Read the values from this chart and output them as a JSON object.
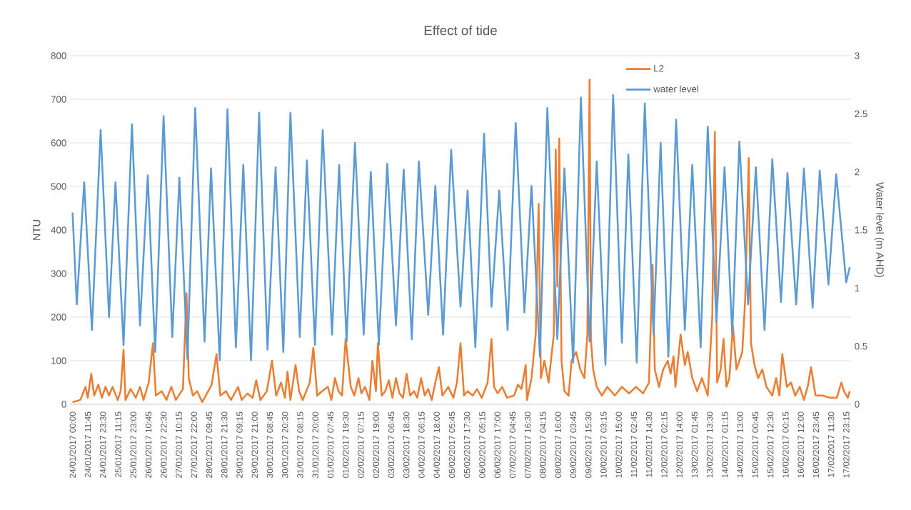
{
  "chart_data": {
    "type": "line",
    "title": "Effect of tide",
    "ylabel": "NTU",
    "y2label": "Water level (m AHD)",
    "xlim": [
      "2017-01-23T22:00",
      "2017-02-18T03:00"
    ],
    "xticks": [
      {
        "value": "2017-01-24T00:00",
        "label": "24/01/2017 00:00"
      },
      {
        "value": "2017-01-24T11:45",
        "label": "24/01/2017 11:45"
      },
      {
        "value": "2017-01-24T23:30",
        "label": "24/01/2017 23:30"
      },
      {
        "value": "2017-01-25T11:15",
        "label": "25/01/2017 11:15"
      },
      {
        "value": "2017-01-25T23:00",
        "label": "25/01/2017 23:00"
      },
      {
        "value": "2017-01-26T10:45",
        "label": "26/01/2017 10:45"
      },
      {
        "value": "2017-01-26T22:30",
        "label": "26/01/2017 22:30"
      },
      {
        "value": "2017-01-27T10:15",
        "label": "27/01/2017 10:15"
      },
      {
        "value": "2017-01-27T22:00",
        "label": "27/01/2017 22:00"
      },
      {
        "value": "2017-01-28T09:45",
        "label": "28/01/2017 09:45"
      },
      {
        "value": "2017-01-28T21:30",
        "label": "28/01/2017 21:30"
      },
      {
        "value": "2017-01-29T09:15",
        "label": "29/01/2017 09:15"
      },
      {
        "value": "2017-01-29T21:00",
        "label": "29/01/2017 21:00"
      },
      {
        "value": "2017-01-30T08:45",
        "label": "30/01/2017 08:45"
      },
      {
        "value": "2017-01-30T20:30",
        "label": "30/01/2017 20:30"
      },
      {
        "value": "2017-01-31T08:15",
        "label": "31/01/2017 08:15"
      },
      {
        "value": "2017-01-31T20:00",
        "label": "31/01/2017 20:00"
      },
      {
        "value": "2017-02-01T07:45",
        "label": "01/02/2017 07:45"
      },
      {
        "value": "2017-02-01T19:30",
        "label": "01/02/2017 19:30"
      },
      {
        "value": "2017-02-02T07:15",
        "label": "02/02/2017 07:15"
      },
      {
        "value": "2017-02-02T19:00",
        "label": "02/02/2017 19:00"
      },
      {
        "value": "2017-02-03T06:45",
        "label": "03/02/2017 06:45"
      },
      {
        "value": "2017-02-03T18:30",
        "label": "03/02/2017 18:30"
      },
      {
        "value": "2017-02-04T06:15",
        "label": "04/02/2017 06:15"
      },
      {
        "value": "2017-02-04T18:00",
        "label": "04/02/2017 18:00"
      },
      {
        "value": "2017-02-05T05:45",
        "label": "05/02/2017 05:45"
      },
      {
        "value": "2017-02-05T17:30",
        "label": "05/02/2017 17:30"
      },
      {
        "value": "2017-02-06T05:15",
        "label": "06/02/2017 05:15"
      },
      {
        "value": "2017-02-06T17:00",
        "label": "06/02/2017 17:00"
      },
      {
        "value": "2017-02-07T04:45",
        "label": "07/02/2017 04:45"
      },
      {
        "value": "2017-02-07T16:30",
        "label": "07/02/2017 16:30"
      },
      {
        "value": "2017-02-08T04:15",
        "label": "08/02/2017 04:15"
      },
      {
        "value": "2017-02-08T16:00",
        "label": "08/02/2017 16:00"
      },
      {
        "value": "2017-02-09T03:45",
        "label": "09/02/2017 03:45"
      },
      {
        "value": "2017-02-09T15:30",
        "label": "09/02/2017 15:30"
      },
      {
        "value": "2017-02-10T03:15",
        "label": "10/02/2017 03:15"
      },
      {
        "value": "2017-02-10T15:00",
        "label": "10/02/2017 15:00"
      },
      {
        "value": "2017-02-11T02:45",
        "label": "11/02/2017 02:45"
      },
      {
        "value": "2017-02-11T14:30",
        "label": "11/02/2017 14:30"
      },
      {
        "value": "2017-02-12T02:15",
        "label": "12/02/2017 02:15"
      },
      {
        "value": "2017-02-12T14:00",
        "label": "12/02/2017 14:00"
      },
      {
        "value": "2017-02-13T01:45",
        "label": "13/02/2017 01:45"
      },
      {
        "value": "2017-02-13T13:30",
        "label": "13/02/2017 13:30"
      },
      {
        "value": "2017-02-14T01:15",
        "label": "14/02/2017 01:15"
      },
      {
        "value": "2017-02-14T13:00",
        "label": "14/02/2017 13:00"
      },
      {
        "value": "2017-02-15T00:45",
        "label": "15/02/2017 00:45"
      },
      {
        "value": "2017-02-15T12:30",
        "label": "15/02/2017 12:30"
      },
      {
        "value": "2017-02-16T00:15",
        "label": "16/02/2017 00:15"
      },
      {
        "value": "2017-02-16T12:00",
        "label": "16/02/2017 12:00"
      },
      {
        "value": "2017-02-16T23:45",
        "label": "16/02/2017 23:45"
      },
      {
        "value": "2017-02-17T11:30",
        "label": "17/02/2017 11:30"
      },
      {
        "value": "2017-02-17T23:15",
        "label": "17/02/2017 23:15"
      }
    ],
    "ylim": [
      0,
      800
    ],
    "yticks": [
      0,
      100,
      200,
      300,
      400,
      500,
      600,
      700,
      800
    ],
    "y2lim": [
      0,
      3
    ],
    "y2ticks": [
      0,
      0.5,
      1,
      1.5,
      2,
      2.5,
      3
    ],
    "grid": "y",
    "legend": "top right",
    "series": [
      {
        "name": "L2",
        "color": "#ed7d31",
        "x": [
          "2017-01-24T00:00",
          "2017-01-24T06:00",
          "2017-01-24T10:00",
          "2017-01-24T11:45",
          "2017-01-24T14:30",
          "2017-01-24T16:45",
          "2017-01-24T20:00",
          "2017-01-24T22:45",
          "2017-01-25T01:30",
          "2017-01-25T04:15",
          "2017-01-25T07:00",
          "2017-01-25T11:00",
          "2017-01-25T13:15",
          "2017-01-25T15:30",
          "2017-01-25T17:00",
          "2017-01-25T21:00",
          "2017-01-26T01:00",
          "2017-01-26T04:15",
          "2017-01-26T07:00",
          "2017-01-26T11:00",
          "2017-01-26T14:15",
          "2017-01-26T16:30",
          "2017-01-26T21:00",
          "2017-01-27T00:45",
          "2017-01-27T04:30",
          "2017-01-27T08:00",
          "2017-01-27T13:30",
          "2017-01-27T16:15",
          "2017-01-27T18:00",
          "2017-01-27T21:15",
          "2017-01-28T00:30",
          "2017-01-28T04:30",
          "2017-01-28T11:45",
          "2017-01-28T15:30",
          "2017-01-28T18:30",
          "2017-01-28T22:45",
          "2017-01-29T02:45",
          "2017-01-29T08:15",
          "2017-01-29T11:00",
          "2017-01-29T15:30",
          "2017-01-29T19:30",
          "2017-01-29T22:15",
          "2017-01-30T01:30",
          "2017-01-30T06:30",
          "2017-01-30T10:30",
          "2017-01-30T13:45",
          "2017-01-30T17:30",
          "2017-01-30T20:30",
          "2017-01-30T22:30",
          "2017-01-31T00:45",
          "2017-01-31T04:45",
          "2017-01-31T07:30",
          "2017-01-31T10:15",
          "2017-01-31T15:45",
          "2017-01-31T18:30",
          "2017-01-31T21:30",
          "2017-02-01T01:15",
          "2017-02-01T05:45",
          "2017-02-01T08:30",
          "2017-02-01T11:15",
          "2017-02-01T14:00",
          "2017-02-01T16:45",
          "2017-02-01T19:30",
          "2017-02-01T23:30",
          "2017-02-02T02:15",
          "2017-02-02T05:30",
          "2017-02-02T07:45",
          "2017-02-02T10:30",
          "2017-02-02T14:00",
          "2017-02-02T16:15",
          "2017-02-02T19:00",
          "2017-02-02T20:30",
          "2017-02-02T23:30",
          "2017-02-03T02:15",
          "2017-02-03T05:00",
          "2017-02-03T07:45",
          "2017-02-03T10:30",
          "2017-02-03T13:15",
          "2017-02-03T16:00",
          "2017-02-03T18:45",
          "2017-02-03T21:30",
          "2017-02-04T00:30",
          "2017-02-04T03:00",
          "2017-02-04T06:00",
          "2017-02-04T08:45",
          "2017-02-04T11:30",
          "2017-02-04T14:15",
          "2017-02-04T17:00",
          "2017-02-04T19:45",
          "2017-02-04T22:30",
          "2017-02-05T03:00",
          "2017-02-05T07:00",
          "2017-02-05T09:45",
          "2017-02-05T12:30",
          "2017-02-05T15:15",
          "2017-02-05T18:00",
          "2017-02-05T22:00",
          "2017-02-06T01:15",
          "2017-02-06T05:00",
          "2017-02-06T09:30",
          "2017-02-06T12:30",
          "2017-02-06T14:30",
          "2017-02-06T17:15",
          "2017-02-06T20:45",
          "2017-02-07T00:30",
          "2017-02-07T06:00",
          "2017-02-07T09:00",
          "2017-02-07T11:45",
          "2017-02-07T15:00",
          "2017-02-07T16:00",
          "2017-02-07T19:30",
          "2017-02-07T22:45",
          "2017-02-08T01:00",
          "2017-02-08T02:45",
          "2017-02-08T05:30",
          "2017-02-08T08:45",
          "2017-02-08T12:45",
          "2017-02-08T14:15",
          "2017-02-08T15:30",
          "2017-02-08T17:00",
          "2017-02-08T18:45",
          "2017-02-08T21:00",
          "2017-02-09T00:15",
          "2017-02-09T02:30",
          "2017-02-09T06:00",
          "2017-02-09T09:15",
          "2017-02-09T12:30",
          "2017-02-09T14:45",
          "2017-02-09T16:30",
          "2017-02-09T17:30",
          "2017-02-09T19:15",
          "2017-02-09T22:00",
          "2017-02-10T02:00",
          "2017-02-10T06:15",
          "2017-02-10T12:00",
          "2017-02-10T17:30",
          "2017-02-10T23:00",
          "2017-02-11T04:30",
          "2017-02-11T10:00",
          "2017-02-11T14:30",
          "2017-02-11T17:15",
          "2017-02-11T19:00",
          "2017-02-11T22:15",
          "2017-02-12T01:30",
          "2017-02-12T05:00",
          "2017-02-12T07:15",
          "2017-02-12T09:30",
          "2017-02-12T11:00",
          "2017-02-12T15:00",
          "2017-02-12T18:15",
          "2017-02-12T20:30",
          "2017-02-13T00:00",
          "2017-02-13T03:45",
          "2017-02-13T07:30",
          "2017-02-13T12:00",
          "2017-02-13T15:30",
          "2017-02-13T17:30",
          "2017-02-13T19:15",
          "2017-02-13T22:00",
          "2017-02-14T00:15",
          "2017-02-14T02:30",
          "2017-02-14T04:45",
          "2017-02-14T07:30",
          "2017-02-14T10:15",
          "2017-02-14T14:45",
          "2017-02-14T17:00",
          "2017-02-14T19:45",
          "2017-02-14T21:30",
          "2017-02-15T00:15",
          "2017-02-15T03:00",
          "2017-02-15T06:15",
          "2017-02-15T09:30",
          "2017-02-15T14:00",
          "2017-02-15T17:00",
          "2017-02-15T19:30",
          "2017-02-15T21:45",
          "2017-02-16T01:15",
          "2017-02-16T04:30",
          "2017-02-16T07:45",
          "2017-02-16T11:15",
          "2017-02-16T14:30",
          "2017-02-16T17:45",
          "2017-02-16T20:00",
          "2017-02-16T23:30",
          "2017-02-17T05:00",
          "2017-02-17T10:30",
          "2017-02-17T16:00",
          "2017-02-17T19:30",
          "2017-02-17T21:30",
          "2017-02-18T00:30",
          "2017-02-18T02:00"
        ],
        "values": [
          5,
          10,
          40,
          15,
          70,
          20,
          45,
          15,
          40,
          20,
          40,
          10,
          30,
          125,
          10,
          35,
          15,
          40,
          10,
          50,
          140,
          20,
          30,
          10,
          40,
          10,
          35,
          255,
          60,
          20,
          30,
          5,
          45,
          115,
          20,
          30,
          10,
          40,
          10,
          25,
          15,
          55,
          10,
          30,
          100,
          20,
          50,
          15,
          75,
          10,
          90,
          30,
          10,
          50,
          130,
          20,
          30,
          40,
          10,
          60,
          30,
          20,
          150,
          40,
          20,
          60,
          25,
          40,
          10,
          100,
          30,
          140,
          20,
          30,
          55,
          15,
          60,
          25,
          15,
          70,
          20,
          30,
          15,
          60,
          20,
          35,
          10,
          50,
          85,
          20,
          40,
          15,
          50,
          140,
          20,
          30,
          20,
          35,
          15,
          50,
          150,
          40,
          25,
          40,
          15,
          20,
          45,
          35,
          90,
          10,
          60,
          160,
          460,
          60,
          100,
          50,
          160,
          585,
          270,
          610,
          100,
          30,
          20,
          100,
          120,
          80,
          60,
          160,
          745,
          150,
          80,
          40,
          20,
          40,
          20,
          40,
          25,
          40,
          25,
          50,
          320,
          80,
          40,
          80,
          100,
          70,
          110,
          40,
          160,
          90,
          120,
          60,
          30,
          60,
          20,
          200,
          625,
          50,
          80,
          150,
          40,
          60,
          180,
          80,
          120,
          240,
          565,
          140,
          90,
          60,
          80,
          40,
          20,
          60,
          20,
          115,
          40,
          50,
          20,
          40,
          10,
          45,
          85,
          20,
          20,
          15,
          15,
          50,
          30,
          15,
          30
        ]
      },
      {
        "name": "water level",
        "color": "#5b9bd5",
        "axis": "y2",
        "x": [
          "2017-01-24T00:00",
          "2017-01-24T03:15",
          "2017-01-24T09:00",
          "2017-01-24T15:00",
          "2017-01-24T21:45",
          "2017-01-25T04:15",
          "2017-01-25T09:15",
          "2017-01-25T15:30",
          "2017-01-25T22:00",
          "2017-01-26T04:15",
          "2017-01-26T10:15",
          "2017-01-26T16:00",
          "2017-01-26T22:30",
          "2017-01-27T05:15",
          "2017-01-27T10:45",
          "2017-01-27T17:00",
          "2017-01-27T23:00",
          "2017-01-28T06:15",
          "2017-01-28T11:15",
          "2017-01-28T18:00",
          "2017-01-29T00:00",
          "2017-01-29T06:30",
          "2017-01-29T12:15",
          "2017-01-29T18:15",
          "2017-01-30T00:30",
          "2017-01-30T07:00",
          "2017-01-30T13:15",
          "2017-01-30T19:15",
          "2017-01-31T00:45",
          "2017-01-31T08:00",
          "2017-01-31T13:30",
          "2017-01-31T19:45",
          "2017-02-01T01:45",
          "2017-02-01T09:00",
          "2017-02-01T14:30",
          "2017-02-01T20:15",
          "2017-02-02T02:45",
          "2017-02-02T09:30",
          "2017-02-02T15:00",
          "2017-02-02T21:15",
          "2017-02-03T03:45",
          "2017-02-03T10:30",
          "2017-02-03T16:30",
          "2017-02-03T22:45",
          "2017-02-04T04:15",
          "2017-02-04T11:30",
          "2017-02-04T17:00",
          "2017-02-04T23:00",
          "2017-02-05T05:15",
          "2017-02-05T12:30",
          "2017-02-05T18:00",
          "2017-02-06T00:00",
          "2017-02-06T06:45",
          "2017-02-06T12:30",
          "2017-02-06T18:30",
          "2017-02-07T01:00",
          "2017-02-07T07:15",
          "2017-02-07T14:00",
          "2017-02-07T19:30",
          "2017-02-08T02:00",
          "2017-02-08T07:45",
          "2017-02-08T15:30",
          "2017-02-08T21:00",
          "2017-02-09T03:45",
          "2017-02-09T09:45",
          "2017-02-09T16:30",
          "2017-02-09T22:00",
          "2017-02-10T04:45",
          "2017-02-10T10:45",
          "2017-02-10T17:30",
          "2017-02-10T22:30",
          "2017-02-11T05:00",
          "2017-02-11T11:15",
          "2017-02-11T18:00",
          "2017-02-11T23:30",
          "2017-02-12T05:30",
          "2017-02-12T11:30",
          "2017-02-12T18:15",
          "2017-02-13T00:00",
          "2017-02-13T06:30",
          "2017-02-13T12:00",
          "2017-02-13T18:45",
          "2017-02-14T01:00",
          "2017-02-14T07:00",
          "2017-02-14T12:30",
          "2017-02-14T19:15",
          "2017-02-15T01:15",
          "2017-02-15T08:00",
          "2017-02-15T14:00",
          "2017-02-15T20:45",
          "2017-02-16T01:45",
          "2017-02-16T08:30",
          "2017-02-16T14:30",
          "2017-02-16T21:15",
          "2017-02-17T02:45",
          "2017-02-17T09:30",
          "2017-02-17T15:30",
          "2017-02-17T23:15",
          "2017-02-18T02:00"
        ],
        "values": [
          1.65,
          0.86,
          1.91,
          0.64,
          2.36,
          0.75,
          1.91,
          0.51,
          2.41,
          0.68,
          1.97,
          0.45,
          2.48,
          0.58,
          1.95,
          0.39,
          2.55,
          0.54,
          2.03,
          0.38,
          2.54,
          0.49,
          2.06,
          0.38,
          2.51,
          0.47,
          2.04,
          0.45,
          2.51,
          0.58,
          2.1,
          0.51,
          2.36,
          0.6,
          2.06,
          0.54,
          2.25,
          0.6,
          2.0,
          0.51,
          2.07,
          0.68,
          2.02,
          0.56,
          2.09,
          0.77,
          1.88,
          0.6,
          2.19,
          0.84,
          1.84,
          0.49,
          2.33,
          0.84,
          1.84,
          0.64,
          2.42,
          0.79,
          1.88,
          0.41,
          2.55,
          0.56,
          2.03,
          0.36,
          2.64,
          0.54,
          2.09,
          0.34,
          2.66,
          0.53,
          2.15,
          0.36,
          2.59,
          0.6,
          2.25,
          0.41,
          2.45,
          0.64,
          2.06,
          0.49,
          2.39,
          0.71,
          2.04,
          0.6,
          2.26,
          0.86,
          2.04,
          0.64,
          2.11,
          0.88,
          1.99,
          0.86,
          2.03,
          0.83,
          2.01,
          1.03,
          1.98,
          1.05,
          1.18
        ]
      }
    ]
  }
}
